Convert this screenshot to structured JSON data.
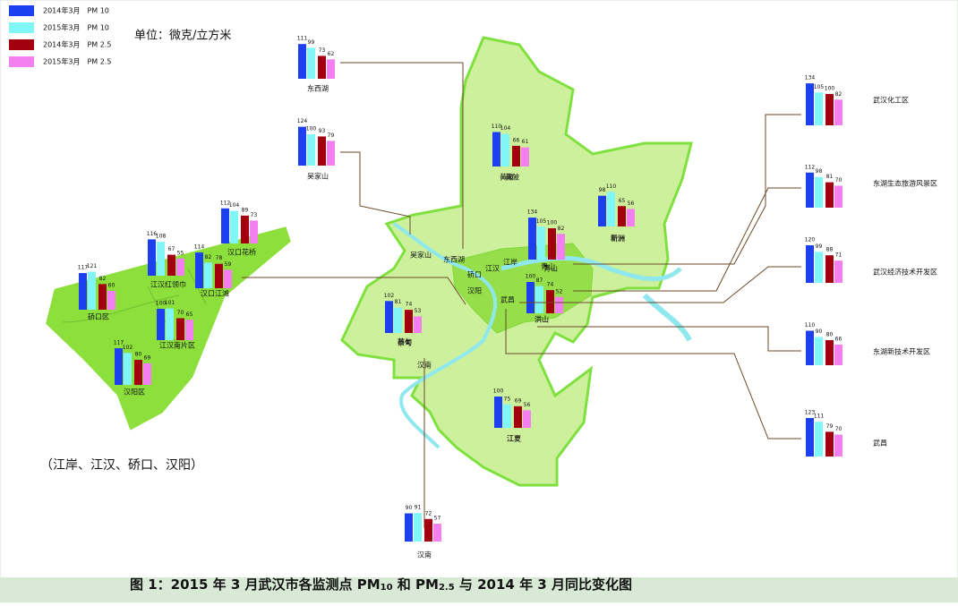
{
  "legend": [
    {
      "name": "2014年3月　PM 10",
      "color": "#1c3ff0"
    },
    {
      "name": "2015年3月　PM 10",
      "color": "#80f6f6"
    },
    {
      "name": "2014年3月　PM 2.5",
      "color": "#a3000f"
    },
    {
      "name": "2015年3月　PM 2.5",
      "color": "#f47ff0"
    }
  ],
  "unit": "单位：微克/立方米",
  "inset_note": "（江岸、江汉、硚口、汉阳）",
  "caption": [
    "图 1：2015 年 3 月武汉市各监测点 PM",
    "10",
    " 和 PM",
    "2.5",
    " 与 2014 年 3 月同比变化图"
  ],
  "stations": [
    {
      "name": "东西湖",
      "values": [
        111,
        99,
        73,
        62
      ]
    },
    {
      "name": "吴家山",
      "values": [
        124,
        100,
        93,
        79
      ]
    },
    {
      "name": "黄陂",
      "values": [
        110,
        104,
        66,
        61
      ]
    },
    {
      "name": "新洲",
      "values": [
        98,
        110,
        65,
        56
      ]
    },
    {
      "name": "青山",
      "values": [
        134,
        105,
        100,
        82
      ]
    },
    {
      "name": "洪山",
      "values": [
        100,
        87,
        74,
        52
      ]
    },
    {
      "name": "蔡甸",
      "values": [
        102,
        81,
        74,
        53
      ]
    },
    {
      "name": "江夏",
      "values": [
        100,
        75,
        69,
        56
      ]
    },
    {
      "name": "汉南",
      "values": [
        90,
        91,
        72,
        57
      ]
    },
    {
      "name": "武汉化工区",
      "values": [
        134,
        105,
        100,
        82
      ]
    },
    {
      "name": "东湖生态旅游风景区",
      "values": [
        112,
        98,
        81,
        70
      ]
    },
    {
      "name": "武汉经济技术开发区",
      "values": [
        120,
        99,
        88,
        71
      ]
    },
    {
      "name": "东湖新技术开发区",
      "values": [
        110,
        90,
        80,
        66
      ]
    },
    {
      "name": "武昌",
      "values": [
        123,
        111,
        79,
        70
      ]
    },
    {
      "name": "硚口区",
      "values": [
        117,
        121,
        82,
        60
      ]
    },
    {
      "name": "江汉红领巾",
      "values": [
        116,
        108,
        67,
        55
      ]
    },
    {
      "name": "汉口江滩",
      "values": [
        114,
        82,
        78,
        59
      ]
    },
    {
      "name": "汉口花桥",
      "values": [
        112,
        104,
        89,
        73
      ]
    },
    {
      "name": "江汉南片区",
      "values": [
        100,
        101,
        70,
        65
      ]
    },
    {
      "name": "汉阳区",
      "values": [
        117,
        102,
        80,
        69
      ]
    }
  ],
  "map_labels": [
    "黄陂",
    "新洲",
    "吴家山",
    "东西湖",
    "硚口",
    "江汉",
    "江岸",
    "汉阳",
    "武昌",
    "青山",
    "洪山",
    "蔡甸",
    "汉南",
    "江夏"
  ]
}
